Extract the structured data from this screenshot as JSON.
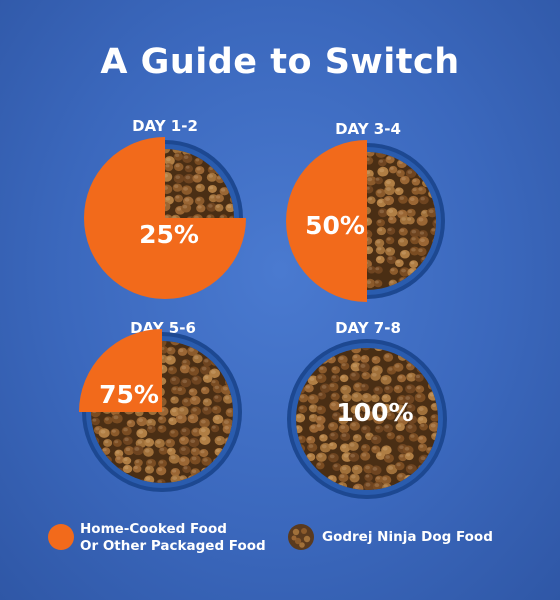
{
  "title": "A Guide to Switch",
  "panels": [
    {
      "day": "DAY 1-2",
      "percent": "25%",
      "fraction": 0.25
    },
    {
      "day": "DAY 3-4",
      "percent": "50%",
      "fraction": 0.5
    },
    {
      "day": "DAY 5-6",
      "percent": "75%",
      "fraction": 0.75
    },
    {
      "day": "DAY 7-8",
      "percent": "100%",
      "fraction": 1.0
    }
  ],
  "legend": {
    "home_line1": "Home-Cooked Food",
    "home_line2": "Or Other Packaged Food",
    "ninja": "Godrej Ninja Dog Food"
  },
  "colors": {
    "orange": "#f26a1b",
    "background": "#3b68bd",
    "bowl_rim": "#1f4e96",
    "kibble": "#8b5a2b"
  }
}
